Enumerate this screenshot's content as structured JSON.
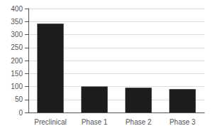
{
  "chart_data": {
    "type": "bar",
    "categories": [
      "Preclinical",
      "Phase 1",
      "Phase 2",
      "Phase 3"
    ],
    "values": [
      342,
      100,
      95,
      90
    ],
    "color": "#1c1c1c",
    "ylim": [
      0,
      400
    ],
    "yticks": [
      0,
      50,
      100,
      150,
      200,
      250,
      300,
      350,
      400
    ],
    "grid": true
  }
}
